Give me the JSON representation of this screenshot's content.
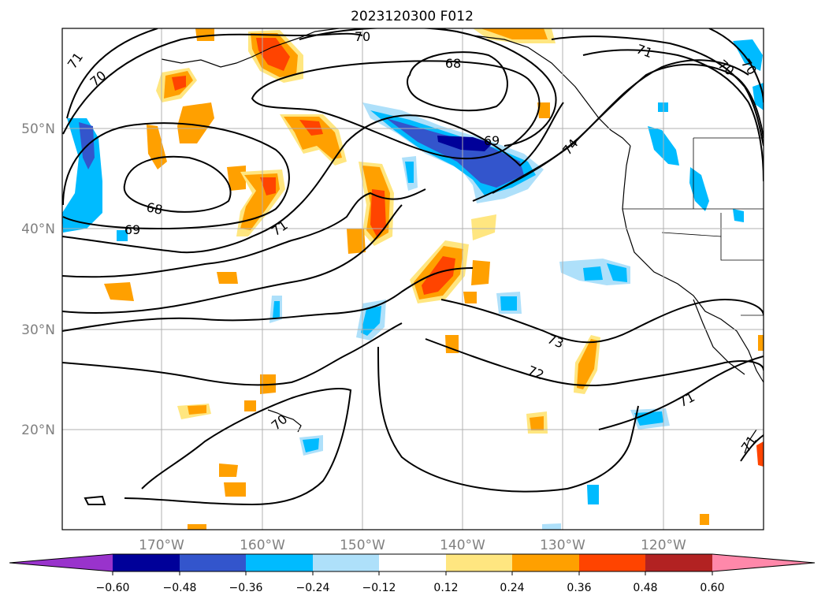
{
  "title": "2023120300 F012",
  "map": {
    "latitude_labels": [
      "50°N",
      "40°N",
      "30°N",
      "20°N"
    ],
    "longitude_labels": [
      "170°W",
      "160°W",
      "150°W",
      "140°W",
      "130°W",
      "120°W"
    ],
    "contour_labels": [
      "71",
      "70",
      "70",
      "68",
      "69",
      "68",
      "69",
      "71",
      "71",
      "70",
      "70",
      "74",
      "73",
      "72",
      "71",
      "70",
      "71"
    ]
  },
  "colorbar": {
    "tick_labels": [
      "−0.60",
      "−0.48",
      "−0.36",
      "−0.24",
      "−0.12",
      "0.12",
      "0.24",
      "0.36",
      "0.48",
      "0.60"
    ],
    "colors": {
      "below_min": "#9933cc",
      "bins": [
        "#000099",
        "#3355cc",
        "#00bbff",
        "#aee0fa",
        "#ffffff",
        "#ffe680",
        "#ffa000",
        "#ff4400",
        "#b22222"
      ],
      "above_max": "#ff88aa"
    }
  }
}
